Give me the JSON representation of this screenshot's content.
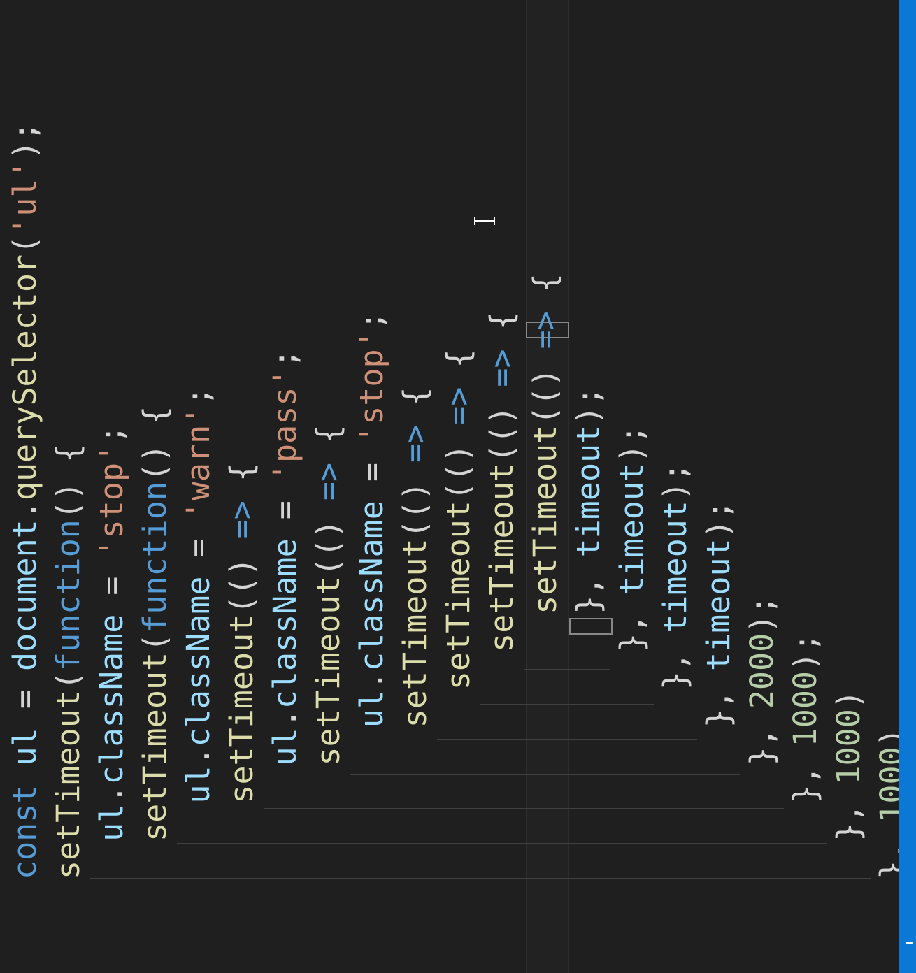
{
  "editor": {
    "language": "javascript",
    "lines": [
      [
        [
          "k",
          "const"
        ],
        [
          "p",
          " "
        ],
        [
          "v",
          "ul"
        ],
        [
          "p",
          " = "
        ],
        [
          "v",
          "document"
        ],
        [
          "p",
          "."
        ],
        [
          "f",
          "querySelector"
        ],
        [
          "p",
          "("
        ],
        [
          "s",
          "'ul'"
        ],
        [
          "p",
          ");"
        ]
      ],
      [
        [
          "f",
          "setTimeout"
        ],
        [
          "p",
          "("
        ],
        [
          "k",
          "function"
        ],
        [
          "p",
          "() {"
        ]
      ],
      [
        [
          "p",
          "  "
        ],
        [
          "v",
          "ul"
        ],
        [
          "p",
          "."
        ],
        [
          "v",
          "className"
        ],
        [
          "p",
          " = "
        ],
        [
          "s",
          "'stop'"
        ],
        [
          "p",
          ";"
        ]
      ],
      [
        [
          "p",
          "  "
        ],
        [
          "f",
          "setTimeout"
        ],
        [
          "p",
          "("
        ],
        [
          "k",
          "function"
        ],
        [
          "p",
          "() {"
        ]
      ],
      [
        [
          "p",
          "    "
        ],
        [
          "v",
          "ul"
        ],
        [
          "p",
          "."
        ],
        [
          "v",
          "className"
        ],
        [
          "p",
          " = "
        ],
        [
          "s",
          "'warn'"
        ],
        [
          "p",
          ";"
        ]
      ],
      [
        [
          "p",
          "    "
        ],
        [
          "f",
          "setTimeout"
        ],
        [
          "p",
          "(() "
        ],
        [
          "ar",
          "=>"
        ],
        [
          "p",
          " {"
        ]
      ],
      [
        [
          "p",
          "      "
        ],
        [
          "v",
          "ul"
        ],
        [
          "p",
          "."
        ],
        [
          "v",
          "className"
        ],
        [
          "p",
          " = "
        ],
        [
          "s",
          "'pass'"
        ],
        [
          "p",
          ";"
        ]
      ],
      [
        [
          "p",
          "      "
        ],
        [
          "f",
          "setTimeout"
        ],
        [
          "p",
          "(() "
        ],
        [
          "ar",
          "=>"
        ],
        [
          "p",
          " {"
        ]
      ],
      [
        [
          "p",
          "        "
        ],
        [
          "v",
          "ul"
        ],
        [
          "p",
          "."
        ],
        [
          "v",
          "className"
        ],
        [
          "p",
          " = "
        ],
        [
          "s",
          "'stop'"
        ],
        [
          "p",
          ";"
        ]
      ],
      [
        [
          "p",
          "        "
        ],
        [
          "f",
          "setTimeout"
        ],
        [
          "p",
          "(() "
        ],
        [
          "ar",
          "=>"
        ],
        [
          "p",
          " {"
        ]
      ],
      [
        [
          "p",
          "          "
        ],
        [
          "f",
          "setTimeout"
        ],
        [
          "p",
          "(() "
        ],
        [
          "ar",
          "=>"
        ],
        [
          "p",
          " {"
        ]
      ],
      [
        [
          "p",
          "            "
        ],
        [
          "f",
          "setTimeout"
        ],
        [
          "p",
          "(() "
        ],
        [
          "ar",
          "=>"
        ],
        [
          "p",
          " {"
        ]
      ],
      [
        [
          "p",
          "              "
        ],
        [
          "f",
          "setTimeout"
        ],
        [
          "p",
          "(() "
        ],
        [
          "ar",
          "=>"
        ],
        [
          "p",
          " {"
        ]
      ],
      [
        [
          "p",
          "              }, "
        ],
        [
          "v",
          "timeout"
        ],
        [
          "p",
          ");"
        ]
      ],
      [
        [
          "p",
          "            }, "
        ],
        [
          "v",
          "timeout"
        ],
        [
          "p",
          ");"
        ]
      ],
      [
        [
          "p",
          "          }, "
        ],
        [
          "v",
          "timeout"
        ],
        [
          "p",
          ");"
        ]
      ],
      [
        [
          "p",
          "        }, "
        ],
        [
          "v",
          "timeout"
        ],
        [
          "p",
          ");"
        ]
      ],
      [
        [
          "p",
          "      }, "
        ],
        [
          "n",
          "2000"
        ],
        [
          "p",
          ");"
        ]
      ],
      [
        [
          "p",
          "    }, "
        ],
        [
          "n",
          "1000"
        ],
        [
          "p",
          ");"
        ]
      ],
      [
        [
          "p",
          "  }, "
        ],
        [
          "n",
          "1000"
        ],
        [
          "p",
          ")"
        ]
      ],
      [
        [
          "p",
          "}, "
        ],
        [
          "n",
          "1000"
        ],
        [
          "p",
          ")"
        ]
      ]
    ]
  },
  "colors": {
    "background": "#1f1f1f",
    "keyword": "#569cd6",
    "variable": "#9cdcfe",
    "function": "#dcdcaa",
    "string": "#ce9178",
    "number": "#b5cea8",
    "punctuation": "#d4d4d4",
    "scrollbar": "#0a78d4"
  },
  "icons": {
    "mouse_pointer": "ibeam-cursor-icon"
  }
}
